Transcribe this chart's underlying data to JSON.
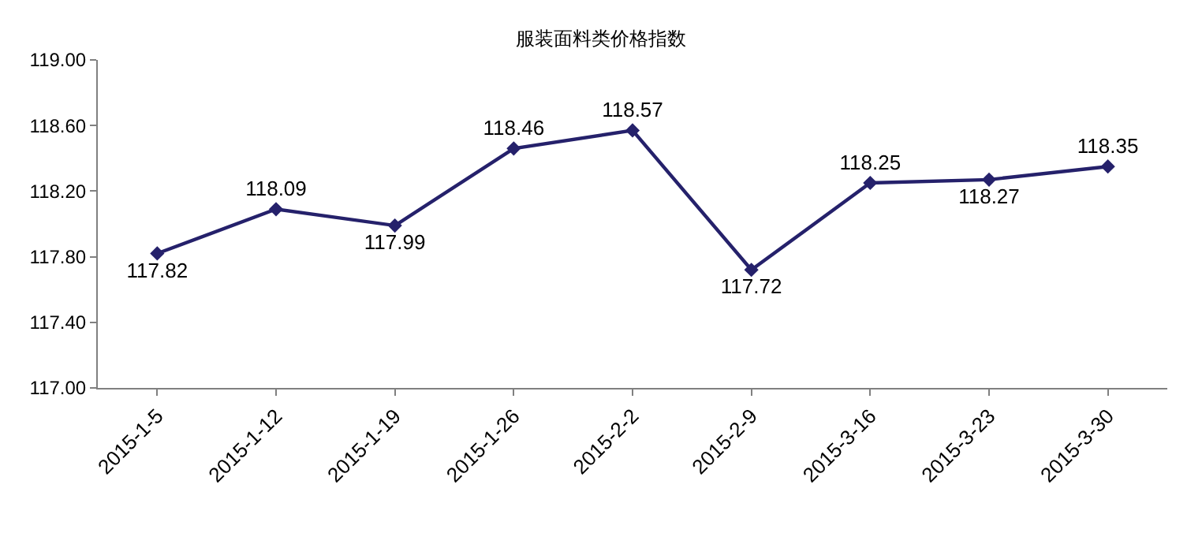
{
  "chart_data": {
    "type": "line",
    "title": "服装面料类价格指数",
    "categories": [
      "2015-1-5",
      "2015-1-12",
      "2015-1-19",
      "2015-1-26",
      "2015-2-2",
      "2015-2-9",
      "2015-3-16",
      "2015-3-23",
      "2015-3-30"
    ],
    "series": [
      {
        "color": "#25216b",
        "values": [
          117.82,
          118.09,
          117.99,
          118.46,
          118.57,
          117.72,
          118.25,
          118.27,
          118.35
        ]
      }
    ],
    "ylim": [
      117.0,
      119.0
    ],
    "yticks": [
      {
        "value": 117.0,
        "label": "117.00"
      },
      {
        "value": 117.4,
        "label": "117.40"
      },
      {
        "value": 117.8,
        "label": "117.80"
      },
      {
        "value": 118.2,
        "label": "118.20"
      },
      {
        "value": 118.6,
        "label": "118.60"
      },
      {
        "value": 119.0,
        "label": "119.00"
      }
    ],
    "legend": false,
    "marker": "diamond",
    "line_style": "solid",
    "data_labels": true
  }
}
